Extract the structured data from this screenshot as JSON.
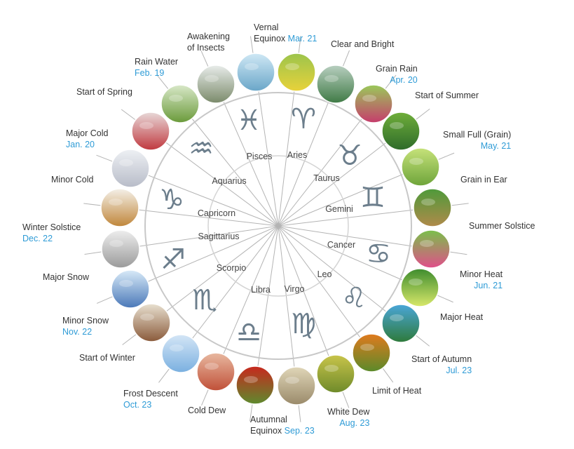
{
  "terms": [
    {
      "name": "Vernal Equinox",
      "line1": "Vernal",
      "line2": "Equinox",
      "date": "Mar. 21",
      "colors": [
        "#cfe8f5",
        "#6aa6c8"
      ]
    },
    {
      "name": "Clear and Bright",
      "date": "",
      "colors": [
        "#9cc44c",
        "#e8d23a"
      ]
    },
    {
      "name": "Grain Rain",
      "date": "Apr. 20",
      "colors": [
        "#b8cfc0",
        "#3f7a45"
      ]
    },
    {
      "name": "Start of Summer",
      "date": "",
      "colors": [
        "#9ac95a",
        "#c63c6c"
      ]
    },
    {
      "name": "Small Full (Grain)",
      "line1": "Small Full (Grain)",
      "date": "May. 21",
      "colors": [
        "#6fae3a",
        "#2e6b2a"
      ]
    },
    {
      "name": "Grain in Ear",
      "date": "",
      "colors": [
        "#c6e27a",
        "#6ea43a"
      ]
    },
    {
      "name": "Summer Solstice",
      "date": "",
      "colors": [
        "#4e9a3a",
        "#b08a4a"
      ]
    },
    {
      "name": "Minor Heat",
      "date": "Jun. 21",
      "colors": [
        "#7ac04a",
        "#e04f8a"
      ]
    },
    {
      "name": "Major Heat",
      "date": "",
      "colors": [
        "#3e8c2e",
        "#d8e86a"
      ]
    },
    {
      "name": "Start of Autumn",
      "date": "Jul. 23",
      "colors": [
        "#4aa6d8",
        "#2e7a3a"
      ]
    },
    {
      "name": "Limit of Heat",
      "date": "",
      "colors": [
        "#e07a1e",
        "#5a8a2a"
      ]
    },
    {
      "name": "White Dew",
      "date": "Aug. 23",
      "colors": [
        "#c8c44a",
        "#6e8a2a"
      ]
    },
    {
      "name": "Autumnal Equinox",
      "line1": "Autumnal",
      "line2": "Equinox",
      "date": "Sep. 23",
      "colors": [
        "#e0d6b8",
        "#9a8a6a"
      ]
    },
    {
      "name": "Cold Dew",
      "date": "",
      "colors": [
        "#c8281e",
        "#5e8a2e"
      ]
    },
    {
      "name": "Frost Descent",
      "date": "Oct. 23",
      "colors": [
        "#e8b8a0",
        "#c05038"
      ]
    },
    {
      "name": "Start of Winter",
      "date": "",
      "colors": [
        "#d4e6f6",
        "#7ab0e0"
      ]
    },
    {
      "name": "Minor Snow",
      "date": "Nov. 22",
      "colors": [
        "#e8e0d0",
        "#8a5a3a"
      ]
    },
    {
      "name": "Major Snow",
      "date": "",
      "colors": [
        "#d8eaf8",
        "#4a78b8"
      ]
    },
    {
      "name": "Winter Solstice",
      "date": "Dec. 22",
      "colors": [
        "#eeeeee",
        "#9a9a9a"
      ]
    },
    {
      "name": "Minor Cold",
      "date": "",
      "colors": [
        "#f4f0e8",
        "#c0863a"
      ]
    },
    {
      "name": "Major Cold",
      "date": "Jan. 20",
      "colors": [
        "#eef0f4",
        "#b8bcc8"
      ]
    },
    {
      "name": "Start of Spring",
      "date": "",
      "colors": [
        "#e8d8d8",
        "#c0383e"
      ]
    },
    {
      "name": "Rain Water",
      "date": "Feb. 19",
      "colors": [
        "#d8e8c8",
        "#6a9a3a"
      ]
    },
    {
      "name": "Awakening of Insects",
      "line1": "Awakening",
      "line2": "of Insects",
      "date": "",
      "colors": [
        "#e8ecea",
        "#7a8a6a"
      ]
    }
  ],
  "zodiac": [
    {
      "name": "Aries",
      "symbol": "♈"
    },
    {
      "name": "Taurus",
      "symbol": "♉"
    },
    {
      "name": "Gemini",
      "symbol": "♊"
    },
    {
      "name": "Cancer",
      "symbol": "♋"
    },
    {
      "name": "Leo",
      "symbol": "♌"
    },
    {
      "name": "Virgo",
      "symbol": "♍"
    },
    {
      "name": "Libra",
      "symbol": "♎"
    },
    {
      "name": "Scorpio",
      "symbol": "♏"
    },
    {
      "name": "Sagittarius",
      "symbol": "♐"
    },
    {
      "name": "Capricorn",
      "symbol": "♑"
    },
    {
      "name": "Aquarius",
      "symbol": "♒"
    },
    {
      "name": "Pisces",
      "symbol": "♓"
    }
  ],
  "colors": {
    "ring": "#c8c8c8",
    "spoke": "#b4b4b4",
    "symbol": "#6c7e8c",
    "date": "#2e9bd6",
    "text": "#333333"
  }
}
